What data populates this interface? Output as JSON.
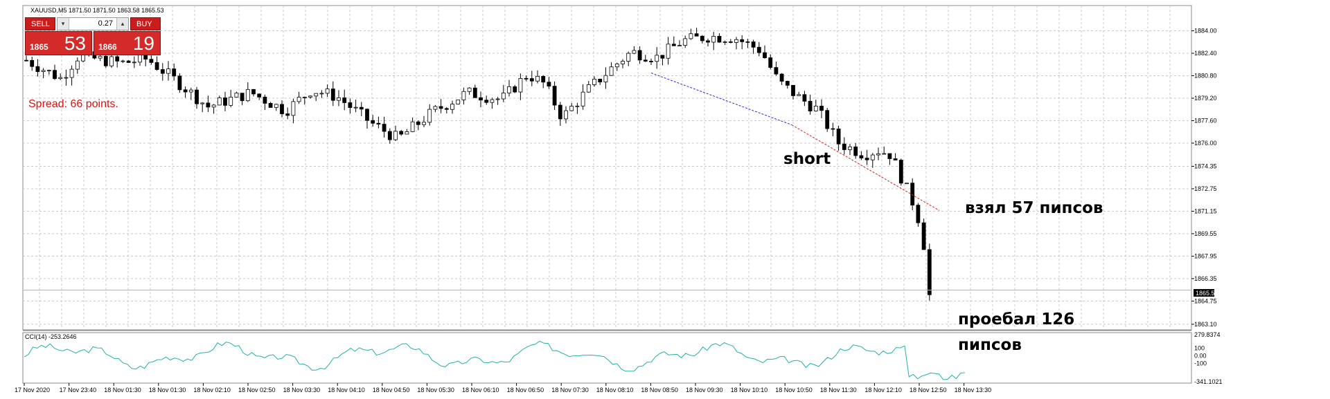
{
  "chart": {
    "header": "XAUUSD,M5  1871.50 1871.50 1863.58 1865.53",
    "spread": "Spread: 66 points.",
    "current_price_label": "1865.53",
    "price_axis": [
      "1884.00",
      "1882.40",
      "1880.80",
      "1879.20",
      "1877.60",
      "1876.00",
      "1874.35",
      "1872.75",
      "1871.15",
      "1869.55",
      "1867.95",
      "1866.35",
      "1864.75",
      "1863.10"
    ],
    "price_range": [
      1862.7,
      1885.8
    ],
    "current_price": 1865.53,
    "time_axis": [
      "17 Nov 2020",
      "17 Nov 23:40",
      "18 Nov 01:30",
      "18 Nov 01:30",
      "18 Nov 02:10",
      "18 Nov 02:50",
      "18 Nov 03:30",
      "18 Nov 04:10",
      "18 Nov 04:50",
      "18 Nov 05:30",
      "18 Nov 06:10",
      "18 Nov 06:50",
      "18 Nov 07:30",
      "18 Nov 08:10",
      "18 Nov 08:50",
      "18 Nov 09:30",
      "18 Nov 10:10",
      "18 Nov 10:50",
      "18 Nov 11:30",
      "18 Nov 12:10",
      "18 Nov 12:50",
      "18 Nov 13:30"
    ],
    "colors": {
      "bull": "#ffffff",
      "bear": "#000000",
      "grid": "#c8c8c8",
      "entry_line": "#2a2ad8",
      "exit_line": "#e02020",
      "cci_line": "#20b2aa"
    }
  },
  "indicator": {
    "label": "CCI(14) -253.2646",
    "axis": [
      "279.8374",
      "100",
      "0.00",
      "-100",
      "-341.1021"
    ],
    "range": [
      -341.1021,
      279.8374
    ]
  },
  "trade_panel": {
    "sell_label": "SELL",
    "buy_label": "BUY",
    "lot": "0.27",
    "sell_small": "1865",
    "sell_big": "53",
    "buy_small": "1866",
    "buy_big": "19"
  },
  "annotations": {
    "short": "short",
    "took": "взял 57 пипсов",
    "lost_1": "проебал 126",
    "lost_2": "пипсов"
  }
}
